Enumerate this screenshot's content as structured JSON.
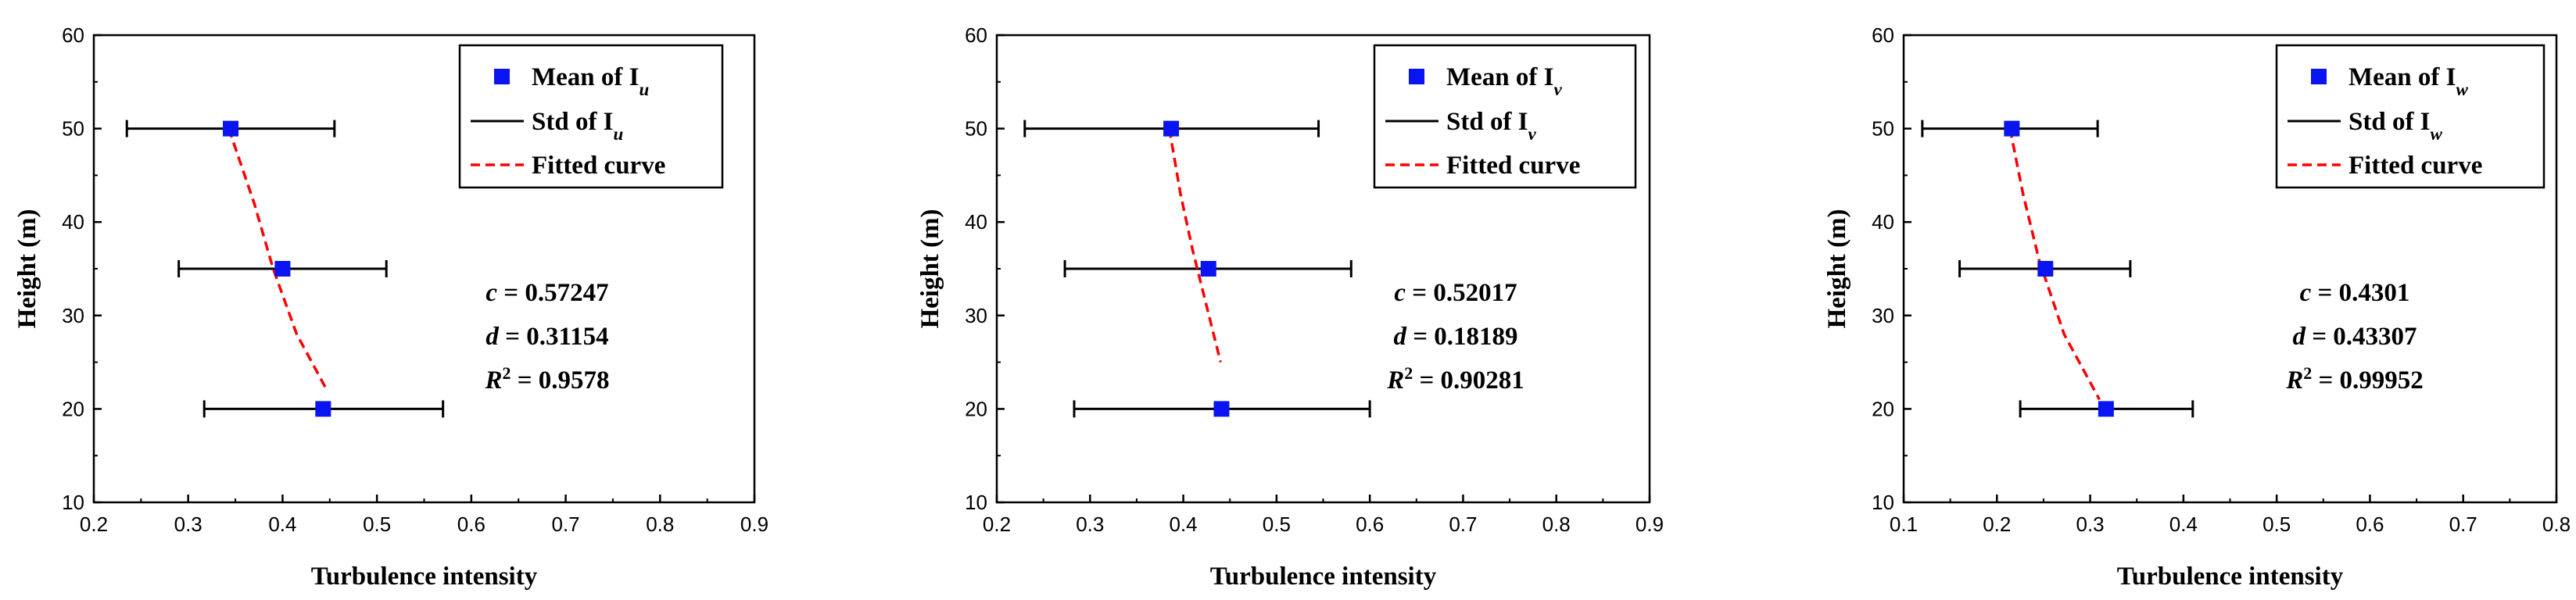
{
  "colors": {
    "mean_marker": "#0a14f0",
    "std_bar": "#000000",
    "fitted_curve": "#ff0000"
  },
  "chart_data": [
    {
      "type": "scatter",
      "xlabel": "Turbulence intensity",
      "ylabel": "Height (m)",
      "xlim": [
        0.2,
        0.9
      ],
      "ylim": [
        10,
        60
      ],
      "xticks": [
        "0.2",
        "0.3",
        "0.4",
        "0.5",
        "0.6",
        "0.7",
        "0.8",
        "0.9"
      ],
      "yticks": [
        "10",
        "20",
        "30",
        "40",
        "50",
        "60"
      ],
      "legend": {
        "placement": "top-right",
        "mean_label": "Mean of I",
        "std_label": "Std of I",
        "subscript": "u",
        "fit_label": "Fitted curve"
      },
      "series": [
        {
          "name": "Mean of Iu",
          "kind": "marker",
          "points": [
            {
              "x": 0.345,
              "y": 50
            },
            {
              "x": 0.4,
              "y": 35
            },
            {
              "x": 0.443,
              "y": 20
            }
          ]
        },
        {
          "name": "Std of Iu",
          "kind": "errorbar",
          "bars": [
            {
              "y": 50,
              "xmin": 0.235,
              "xmax": 0.455
            },
            {
              "y": 35,
              "xmin": 0.29,
              "xmax": 0.51
            },
            {
              "y": 20,
              "xmin": 0.317,
              "xmax": 0.57
            }
          ]
        },
        {
          "name": "Fitted curve",
          "kind": "dashed-line",
          "points": [
            {
              "x": 0.343,
              "y": 50
            },
            {
              "x": 0.37,
              "y": 42
            },
            {
              "x": 0.39,
              "y": 35
            },
            {
              "x": 0.415,
              "y": 28
            },
            {
              "x": 0.447,
              "y": 22
            }
          ]
        }
      ],
      "annotation": {
        "c": "0.57247",
        "d": "0.31154",
        "r2": "0.9578",
        "c_label": "c",
        "d_label": "d",
        "r_label": "R",
        "r_exp": "2",
        "eq": " = "
      }
    },
    {
      "type": "scatter",
      "xlabel": "Turbulence intensity",
      "ylabel": "Height (m)",
      "xlim": [
        0.2,
        0.9
      ],
      "ylim": [
        10,
        60
      ],
      "xticks": [
        "0.2",
        "0.3",
        "0.4",
        "0.5",
        "0.6",
        "0.7",
        "0.8",
        "0.9"
      ],
      "yticks": [
        "10",
        "20",
        "30",
        "40",
        "50",
        "60"
      ],
      "legend": {
        "placement": "top-right",
        "mean_label": "Mean of I",
        "std_label": "Std of I",
        "subscript": "v",
        "fit_label": "Fitted curve"
      },
      "series": [
        {
          "name": "Mean of Iv",
          "kind": "marker",
          "points": [
            {
              "x": 0.387,
              "y": 50
            },
            {
              "x": 0.427,
              "y": 35
            },
            {
              "x": 0.441,
              "y": 20
            }
          ]
        },
        {
          "name": "Std of Iv",
          "kind": "errorbar",
          "bars": [
            {
              "y": 50,
              "xmin": 0.23,
              "xmax": 0.545
            },
            {
              "y": 35,
              "xmin": 0.273,
              "xmax": 0.58
            },
            {
              "y": 20,
              "xmin": 0.283,
              "xmax": 0.6
            }
          ]
        },
        {
          "name": "Fitted curve",
          "kind": "dashed-line",
          "points": [
            {
              "x": 0.385,
              "y": 50
            },
            {
              "x": 0.397,
              "y": 43
            },
            {
              "x": 0.41,
              "y": 37
            },
            {
              "x": 0.425,
              "y": 31
            },
            {
              "x": 0.44,
              "y": 25
            }
          ]
        }
      ],
      "annotation": {
        "c": "0.52017",
        "d": "0.18189",
        "r2": "0.90281",
        "c_label": "c",
        "d_label": "d",
        "r_label": "R",
        "r_exp": "2",
        "eq": " = "
      }
    },
    {
      "type": "scatter",
      "xlabel": "Turbulence intensity",
      "ylabel": "Height (m)",
      "xlim": [
        0.1,
        0.8
      ],
      "ylim": [
        10,
        60
      ],
      "xticks": [
        "0.1",
        "0.2",
        "0.3",
        "0.4",
        "0.5",
        "0.6",
        "0.7",
        "0.8"
      ],
      "yticks": [
        "10",
        "20",
        "30",
        "40",
        "50",
        "60"
      ],
      "legend": {
        "placement": "top-right",
        "mean_label": "Mean of I",
        "std_label": "Std of I",
        "subscript": "w",
        "fit_label": "Fitted curve"
      },
      "series": [
        {
          "name": "Mean of Iw",
          "kind": "marker",
          "points": [
            {
              "x": 0.216,
              "y": 50
            },
            {
              "x": 0.252,
              "y": 35
            },
            {
              "x": 0.317,
              "y": 20
            }
          ]
        },
        {
          "name": "Std of Iw",
          "kind": "errorbar",
          "bars": [
            {
              "y": 50,
              "xmin": 0.12,
              "xmax": 0.308
            },
            {
              "y": 35,
              "xmin": 0.16,
              "xmax": 0.343
            },
            {
              "y": 20,
              "xmin": 0.225,
              "xmax": 0.41
            }
          ]
        },
        {
          "name": "Fitted curve",
          "kind": "dashed-line",
          "points": [
            {
              "x": 0.214,
              "y": 50
            },
            {
              "x": 0.228,
              "y": 43
            },
            {
              "x": 0.245,
              "y": 36
            },
            {
              "x": 0.272,
              "y": 28
            },
            {
              "x": 0.31,
              "y": 21
            }
          ]
        }
      ],
      "annotation": {
        "c": "0.4301",
        "d": "0.43307",
        "r2": "0.99952",
        "c_label": "c",
        "d_label": "d",
        "r_label": "R",
        "r_exp": "2",
        "eq": " = "
      }
    }
  ]
}
